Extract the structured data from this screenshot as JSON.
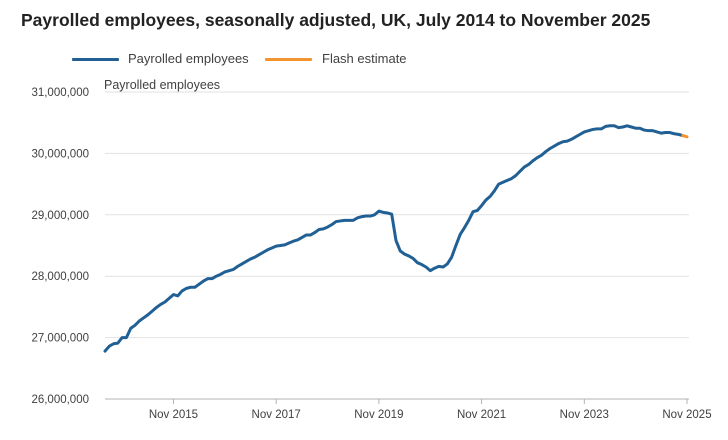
{
  "title": "Payrolled employees, seasonally adjusted, UK, July 2014 to November 2025",
  "chart_data": {
    "type": "line",
    "title": "Payrolled employees, seasonally adjusted, UK, July 2014 to November 2025",
    "ylabel": "Payrolled employees",
    "ylim": [
      26000000,
      31000000
    ],
    "y_ticks": [
      26000000,
      27000000,
      28000000,
      29000000,
      30000000,
      31000000
    ],
    "y_tick_labels": [
      "26,000,000",
      "27,000,000",
      "28,000,000",
      "29,000,000",
      "30,000,000",
      "31,000,000"
    ],
    "x_ticks": [
      "2015-11",
      "2017-11",
      "2019-11",
      "2021-11",
      "2023-11",
      "2025-11"
    ],
    "x_tick_labels": [
      "Nov 2015",
      "Nov 2017",
      "Nov 2019",
      "Nov 2021",
      "Nov 2023",
      "Nov 2025"
    ],
    "x_range": [
      "2014-07",
      "2025-11"
    ],
    "grid": "horizontal",
    "legend_position": "top-left",
    "colors": {
      "payrolled": "#206095",
      "flash": "#f39431"
    },
    "series": [
      {
        "name": "Payrolled employees",
        "color": "#206095",
        "points": [
          [
            "2014-07",
            26780000
          ],
          [
            "2014-08",
            26860000
          ],
          [
            "2014-09",
            26900000
          ],
          [
            "2014-10",
            26910000
          ],
          [
            "2014-11",
            27000000
          ],
          [
            "2014-12",
            27000000
          ],
          [
            "2015-01",
            27150000
          ],
          [
            "2015-02",
            27200000
          ],
          [
            "2015-03",
            27270000
          ],
          [
            "2015-04",
            27320000
          ],
          [
            "2015-05",
            27370000
          ],
          [
            "2015-06",
            27430000
          ],
          [
            "2015-07",
            27490000
          ],
          [
            "2015-08",
            27540000
          ],
          [
            "2015-09",
            27580000
          ],
          [
            "2015-10",
            27640000
          ],
          [
            "2015-11",
            27700000
          ],
          [
            "2015-12",
            27680000
          ],
          [
            "2016-01",
            27760000
          ],
          [
            "2016-02",
            27800000
          ],
          [
            "2016-03",
            27820000
          ],
          [
            "2016-04",
            27820000
          ],
          [
            "2016-05",
            27870000
          ],
          [
            "2016-06",
            27920000
          ],
          [
            "2016-07",
            27960000
          ],
          [
            "2016-08",
            27960000
          ],
          [
            "2016-09",
            28000000
          ],
          [
            "2016-10",
            28030000
          ],
          [
            "2016-11",
            28070000
          ],
          [
            "2016-12",
            28090000
          ],
          [
            "2017-01",
            28110000
          ],
          [
            "2017-02",
            28160000
          ],
          [
            "2017-03",
            28200000
          ],
          [
            "2017-04",
            28240000
          ],
          [
            "2017-05",
            28280000
          ],
          [
            "2017-06",
            28310000
          ],
          [
            "2017-07",
            28350000
          ],
          [
            "2017-08",
            28390000
          ],
          [
            "2017-09",
            28430000
          ],
          [
            "2017-10",
            28460000
          ],
          [
            "2017-11",
            28490000
          ],
          [
            "2017-12",
            28500000
          ],
          [
            "2018-01",
            28510000
          ],
          [
            "2018-02",
            28540000
          ],
          [
            "2018-03",
            28570000
          ],
          [
            "2018-04",
            28590000
          ],
          [
            "2018-05",
            28630000
          ],
          [
            "2018-06",
            28670000
          ],
          [
            "2018-07",
            28670000
          ],
          [
            "2018-08",
            28710000
          ],
          [
            "2018-09",
            28760000
          ],
          [
            "2018-10",
            28770000
          ],
          [
            "2018-11",
            28800000
          ],
          [
            "2018-12",
            28840000
          ],
          [
            "2019-01",
            28890000
          ],
          [
            "2019-02",
            28900000
          ],
          [
            "2019-03",
            28910000
          ],
          [
            "2019-04",
            28910000
          ],
          [
            "2019-05",
            28910000
          ],
          [
            "2019-06",
            28950000
          ],
          [
            "2019-07",
            28970000
          ],
          [
            "2019-08",
            28980000
          ],
          [
            "2019-09",
            28980000
          ],
          [
            "2019-10",
            29000000
          ],
          [
            "2019-11",
            29060000
          ],
          [
            "2019-12",
            29040000
          ],
          [
            "2020-01",
            29030000
          ],
          [
            "2020-02",
            29010000
          ],
          [
            "2020-03",
            28580000
          ],
          [
            "2020-04",
            28410000
          ],
          [
            "2020-05",
            28360000
          ],
          [
            "2020-06",
            28330000
          ],
          [
            "2020-07",
            28290000
          ],
          [
            "2020-08",
            28220000
          ],
          [
            "2020-09",
            28190000
          ],
          [
            "2020-10",
            28150000
          ],
          [
            "2020-11",
            28090000
          ],
          [
            "2020-12",
            28130000
          ],
          [
            "2021-01",
            28160000
          ],
          [
            "2021-02",
            28150000
          ],
          [
            "2021-03",
            28200000
          ],
          [
            "2021-04",
            28310000
          ],
          [
            "2021-05",
            28500000
          ],
          [
            "2021-06",
            28680000
          ],
          [
            "2021-07",
            28790000
          ],
          [
            "2021-08",
            28910000
          ],
          [
            "2021-09",
            29050000
          ],
          [
            "2021-10",
            29070000
          ],
          [
            "2021-11",
            29150000
          ],
          [
            "2021-12",
            29240000
          ],
          [
            "2022-01",
            29300000
          ],
          [
            "2022-02",
            29390000
          ],
          [
            "2022-03",
            29500000
          ],
          [
            "2022-04",
            29530000
          ],
          [
            "2022-05",
            29560000
          ],
          [
            "2022-06",
            29590000
          ],
          [
            "2022-07",
            29640000
          ],
          [
            "2022-08",
            29710000
          ],
          [
            "2022-09",
            29780000
          ],
          [
            "2022-10",
            29820000
          ],
          [
            "2022-11",
            29880000
          ],
          [
            "2022-12",
            29930000
          ],
          [
            "2023-01",
            29970000
          ],
          [
            "2023-02",
            30030000
          ],
          [
            "2023-03",
            30080000
          ],
          [
            "2023-04",
            30120000
          ],
          [
            "2023-05",
            30160000
          ],
          [
            "2023-06",
            30190000
          ],
          [
            "2023-07",
            30200000
          ],
          [
            "2023-08",
            30230000
          ],
          [
            "2023-09",
            30270000
          ],
          [
            "2023-10",
            30310000
          ],
          [
            "2023-11",
            30350000
          ],
          [
            "2023-12",
            30370000
          ],
          [
            "2024-01",
            30390000
          ],
          [
            "2024-02",
            30400000
          ],
          [
            "2024-03",
            30400000
          ],
          [
            "2024-04",
            30440000
          ],
          [
            "2024-05",
            30450000
          ],
          [
            "2024-06",
            30450000
          ],
          [
            "2024-07",
            30420000
          ],
          [
            "2024-08",
            30430000
          ],
          [
            "2024-09",
            30450000
          ],
          [
            "2024-10",
            30430000
          ],
          [
            "2024-11",
            30410000
          ],
          [
            "2024-12",
            30410000
          ],
          [
            "2025-01",
            30380000
          ],
          [
            "2025-02",
            30370000
          ],
          [
            "2025-03",
            30370000
          ],
          [
            "2025-04",
            30350000
          ],
          [
            "2025-05",
            30330000
          ],
          [
            "2025-06",
            30340000
          ],
          [
            "2025-07",
            30340000
          ],
          [
            "2025-08",
            30320000
          ],
          [
            "2025-09",
            30310000
          ],
          [
            "2025-10",
            30290000
          ]
        ]
      },
      {
        "name": "Flash estimate",
        "color": "#f39431",
        "points": [
          [
            "2025-10",
            30290000
          ],
          [
            "2025-11",
            30270000
          ]
        ]
      }
    ]
  }
}
